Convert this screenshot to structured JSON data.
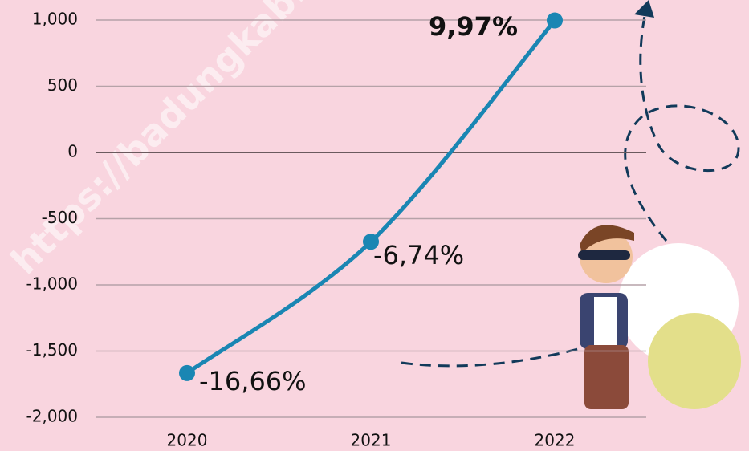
{
  "chart_data": {
    "type": "line",
    "watermark": "https://badungkab.",
    "categories": [
      "2020",
      "2021",
      "2022"
    ],
    "series": [
      {
        "name": null,
        "color": "#1a86b3",
        "values": [
          -1666,
          -674,
          997
        ],
        "value_labels": [
          "-16,66%",
          "-6,74%",
          "9,97%"
        ]
      }
    ],
    "ylim": [
      -2000,
      1000
    ],
    "yticks": [
      {
        "value": -2000,
        "label": "-2,000"
      },
      {
        "value": -1500,
        "label": "-1,500"
      },
      {
        "value": -1000,
        "label": "-1,000"
      },
      -500,
      0,
      500,
      {
        "value": 1000,
        "label": "1,000"
      }
    ],
    "grid": true
  }
}
